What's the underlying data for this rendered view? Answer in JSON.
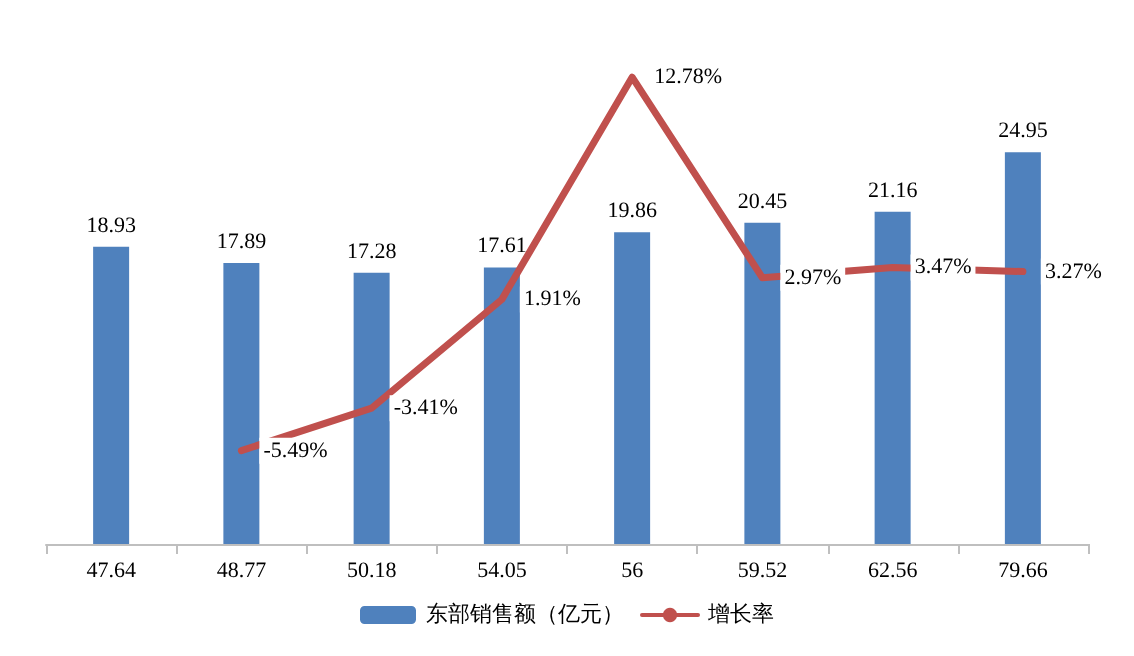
{
  "chart_data": {
    "type": "bar",
    "categories": [
      "47.64",
      "48.77",
      "50.18",
      "54.05",
      "56",
      "59.52",
      "62.56",
      "79.66"
    ],
    "series": [
      {
        "name": "东部销售额（亿元）",
        "type": "bar",
        "color": "#4f81bd",
        "values": [
          18.93,
          17.89,
          17.28,
          17.61,
          19.86,
          20.45,
          21.16,
          24.95
        ]
      },
      {
        "name": "增长率",
        "type": "line",
        "axis": "y2",
        "color": "#c0504d",
        "values": [
          null,
          -5.49,
          -3.41,
          1.91,
          12.78,
          2.97,
          3.47,
          3.27
        ],
        "value_labels": [
          null,
          "-5.49%",
          "-3.41%",
          "1.91%",
          "12.78%",
          "2.97%",
          "3.47%",
          "3.27%"
        ]
      }
    ],
    "data_labels": true,
    "tick_labels": "x",
    "grid": false,
    "legend": "bottom",
    "marker": "none",
    "line_style": "solid"
  }
}
